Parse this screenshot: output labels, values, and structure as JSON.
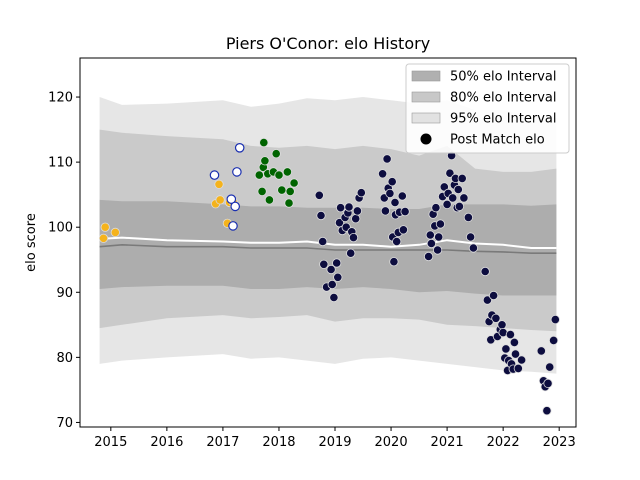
{
  "chart_data": {
    "type": "scatter",
    "title": "Piers O'Conor: elo History",
    "xlabel": "",
    "ylabel": "elo score",
    "xlim": [
      2014.45,
      2023.3
    ],
    "ylim": [
      69.3,
      126.0
    ],
    "x_ticks": [
      2015,
      2016,
      2017,
      2018,
      2019,
      2020,
      2021,
      2022,
      2023
    ],
    "y_ticks": [
      70,
      80,
      90,
      100,
      110,
      120
    ],
    "grid": false,
    "legend_position": "top-right",
    "legend": [
      {
        "label": "50% elo Interval",
        "kind": "band",
        "color": "#a9a9a9"
      },
      {
        "label": "80% elo Interval",
        "kind": "band",
        "color": "#c4c4c4"
      },
      {
        "label": "95% elo Interval",
        "kind": "band",
        "color": "#e2e2e2"
      },
      {
        "label": "Post Match elo",
        "kind": "marker",
        "color": "#000000"
      }
    ],
    "bands": {
      "x": [
        2014.8,
        2015.2,
        2016.0,
        2017.0,
        2017.5,
        2018.0,
        2018.5,
        2019.0,
        2019.5,
        2020.0,
        2020.5,
        2021.0,
        2021.5,
        2022.0,
        2022.5,
        2022.95
      ],
      "band95_low": [
        79.0,
        79.5,
        80.0,
        80.5,
        79.8,
        80.0,
        79.5,
        79.0,
        79.8,
        80.0,
        79.5,
        79.0,
        78.5,
        78.0,
        77.8,
        77.5
      ],
      "band95_high": [
        120.0,
        118.8,
        119.0,
        119.5,
        118.5,
        119.0,
        119.8,
        119.5,
        120.0,
        119.5,
        119.0,
        119.5,
        118.0,
        118.0,
        117.0,
        116.8
      ],
      "band80_low": [
        84.5,
        85.0,
        86.0,
        86.5,
        86.0,
        86.2,
        86.5,
        85.5,
        86.0,
        86.0,
        85.8,
        85.0,
        84.8,
        84.5,
        84.2,
        84.0
      ],
      "band80_high": [
        115.0,
        114.5,
        114.0,
        113.5,
        112.5,
        112.2,
        112.5,
        112.0,
        112.5,
        112.0,
        111.0,
        112.5,
        109.0,
        108.5,
        108.5,
        109.0
      ],
      "band50_low": [
        90.5,
        90.8,
        91.0,
        91.0,
        90.5,
        90.5,
        90.8,
        90.5,
        90.8,
        90.5,
        90.0,
        90.2,
        89.8,
        89.5,
        89.5,
        89.5
      ],
      "band50_high": [
        104.2,
        104.0,
        104.0,
        103.5,
        103.2,
        103.2,
        103.0,
        103.0,
        103.0,
        102.8,
        102.8,
        103.5,
        103.5,
        103.5,
        103.3,
        103.5
      ],
      "median": [
        97.0,
        97.3,
        97.0,
        97.0,
        96.8,
        96.8,
        96.8,
        96.5,
        96.5,
        96.5,
        96.5,
        96.5,
        96.3,
        96.2,
        96.0,
        96.0
      ],
      "mean": [
        98.2,
        98.4,
        98.0,
        97.8,
        97.6,
        97.6,
        97.8,
        97.3,
        97.3,
        97.0,
        97.3,
        98.0,
        97.5,
        97.3,
        96.8,
        96.8
      ]
    },
    "series": [
      {
        "color": "#f5b31c",
        "points": [
          [
            2014.87,
            98.3
          ],
          [
            2014.9,
            100.0
          ],
          [
            2015.08,
            99.2
          ],
          [
            2016.87,
            103.6
          ],
          [
            2016.93,
            106.6
          ],
          [
            2016.95,
            104.2
          ],
          [
            2017.08,
            100.6
          ],
          [
            2017.12,
            103.8
          ],
          [
            2017.18,
            103.9
          ]
        ]
      },
      {
        "color": "#ffffff",
        "edge": "#1a2fb0",
        "points": [
          [
            2016.85,
            108.0
          ],
          [
            2017.15,
            104.3
          ],
          [
            2017.18,
            100.2
          ],
          [
            2017.22,
            103.2
          ],
          [
            2017.25,
            108.5
          ],
          [
            2017.3,
            112.2
          ]
        ]
      },
      {
        "color": "#006400",
        "points": [
          [
            2017.65,
            108.0
          ],
          [
            2017.7,
            105.5
          ],
          [
            2017.72,
            109.2
          ],
          [
            2017.73,
            113.0
          ],
          [
            2017.75,
            110.2
          ],
          [
            2017.8,
            108.2
          ],
          [
            2017.83,
            104.2
          ],
          [
            2017.9,
            108.5
          ],
          [
            2017.95,
            111.3
          ],
          [
            2018.0,
            108.0
          ],
          [
            2018.05,
            105.7
          ],
          [
            2018.15,
            108.5
          ],
          [
            2018.18,
            103.7
          ],
          [
            2018.2,
            105.5
          ],
          [
            2018.27,
            106.8
          ]
        ]
      },
      {
        "color": "#0d0d3f",
        "points": [
          [
            2018.72,
            104.9
          ],
          [
            2018.75,
            101.8
          ],
          [
            2018.78,
            97.8
          ],
          [
            2018.8,
            94.3
          ],
          [
            2018.85,
            90.8
          ],
          [
            2018.93,
            93.5
          ],
          [
            2018.95,
            91.2
          ],
          [
            2018.98,
            89.2
          ],
          [
            2019.03,
            94.5
          ],
          [
            2019.05,
            92.3
          ],
          [
            2019.08,
            100.7
          ],
          [
            2019.1,
            103.0
          ],
          [
            2019.13,
            99.5
          ],
          [
            2019.18,
            101.5
          ],
          [
            2019.2,
            100.0
          ],
          [
            2019.23,
            102.2
          ],
          [
            2019.25,
            103.1
          ],
          [
            2019.28,
            96.0
          ],
          [
            2019.3,
            99.3
          ],
          [
            2019.33,
            98.4
          ],
          [
            2019.37,
            101.3
          ],
          [
            2019.4,
            102.5
          ],
          [
            2019.43,
            104.5
          ],
          [
            2019.47,
            105.3
          ],
          [
            2019.85,
            108.2
          ],
          [
            2019.88,
            104.5
          ],
          [
            2019.9,
            102.5
          ],
          [
            2019.93,
            110.5
          ],
          [
            2019.95,
            106.0
          ],
          [
            2019.98,
            105.2
          ],
          [
            2020.02,
            107.0
          ],
          [
            2020.03,
            98.5
          ],
          [
            2020.05,
            94.7
          ],
          [
            2020.07,
            103.8
          ],
          [
            2020.08,
            101.9
          ],
          [
            2020.1,
            97.8
          ],
          [
            2020.13,
            99.2
          ],
          [
            2020.15,
            102.3
          ],
          [
            2020.2,
            104.8
          ],
          [
            2020.22,
            99.6
          ],
          [
            2020.25,
            102.4
          ],
          [
            2020.67,
            95.5
          ],
          [
            2020.7,
            98.8
          ],
          [
            2020.72,
            97.5
          ],
          [
            2020.75,
            102.0
          ],
          [
            2020.78,
            100.2
          ],
          [
            2020.8,
            103.0
          ],
          [
            2020.83,
            96.5
          ],
          [
            2020.85,
            98.5
          ],
          [
            2020.88,
            100.5
          ],
          [
            2020.92,
            104.7
          ],
          [
            2020.95,
            106.2
          ],
          [
            2021.0,
            103.5
          ],
          [
            2021.02,
            105.2
          ],
          [
            2021.05,
            108.3
          ],
          [
            2021.08,
            111.0
          ],
          [
            2021.1,
            104.5
          ],
          [
            2021.13,
            106.5
          ],
          [
            2021.15,
            107.5
          ],
          [
            2021.18,
            103.0
          ],
          [
            2021.2,
            105.8
          ],
          [
            2021.22,
            103.2
          ],
          [
            2021.27,
            107.5
          ],
          [
            2021.3,
            104.5
          ],
          [
            2021.38,
            101.5
          ],
          [
            2021.42,
            98.5
          ],
          [
            2021.47,
            96.8
          ],
          [
            2021.68,
            93.2
          ],
          [
            2021.72,
            88.8
          ],
          [
            2021.75,
            85.5
          ],
          [
            2021.78,
            82.7
          ],
          [
            2021.8,
            86.5
          ],
          [
            2021.83,
            89.5
          ],
          [
            2021.87,
            86.0
          ],
          [
            2021.9,
            83.2
          ],
          [
            2021.95,
            84.3
          ],
          [
            2021.98,
            85.0
          ],
          [
            2022.0,
            83.8
          ],
          [
            2022.03,
            79.9
          ],
          [
            2022.05,
            81.3
          ],
          [
            2022.08,
            78.0
          ],
          [
            2022.1,
            79.5
          ],
          [
            2022.13,
            83.5
          ],
          [
            2022.15,
            79.0
          ],
          [
            2022.18,
            78.2
          ],
          [
            2022.2,
            82.3
          ],
          [
            2022.22,
            80.5
          ],
          [
            2022.27,
            78.3
          ],
          [
            2022.33,
            79.6
          ],
          [
            2022.68,
            81.0
          ],
          [
            2022.72,
            76.4
          ],
          [
            2022.75,
            75.5
          ],
          [
            2022.78,
            71.8
          ],
          [
            2022.8,
            76.0
          ],
          [
            2022.83,
            78.5
          ],
          [
            2022.9,
            82.6
          ],
          [
            2022.93,
            85.8
          ]
        ]
      }
    ]
  }
}
